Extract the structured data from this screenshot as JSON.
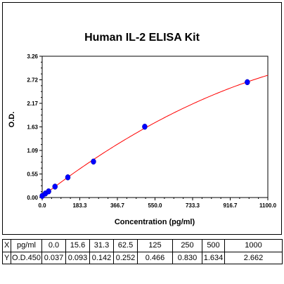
{
  "chart_data": {
    "type": "scatter",
    "title": "Human IL-2 ELISA Kit",
    "xlabel": "Concentration (pg/ml)",
    "ylabel": "O.D.",
    "xlim": [
      0,
      1100
    ],
    "ylim": [
      0,
      3.26
    ],
    "x_ticks": [
      "0.0",
      "183.3",
      "366.7",
      "550.0",
      "733.3",
      "916.7",
      "1100.0"
    ],
    "y_ticks": [
      "0.00",
      "0.55",
      "1.09",
      "1.63",
      "2.17",
      "2.72",
      "3.26"
    ],
    "grid": false,
    "series": [
      {
        "x": [
          0.0,
          15.6,
          31.3,
          62.5,
          125,
          250,
          500,
          1000
        ],
        "y": [
          0.037,
          0.093,
          0.142,
          0.252,
          0.466,
          0.83,
          1.634,
          2.662
        ],
        "point_color": "#0000ff",
        "fit_color": "#ff0000"
      }
    ]
  },
  "table": {
    "rows": [
      [
        "X",
        "pg/ml",
        "0.0",
        "15.6",
        "31.3",
        "62.5",
        "125",
        "250",
        "500",
        "1000"
      ],
      [
        "Y",
        "O.D.450",
        "0.037",
        "0.093",
        "0.142",
        "0.252",
        "0.466",
        "0.830",
        "1.634",
        "2.662"
      ]
    ]
  }
}
